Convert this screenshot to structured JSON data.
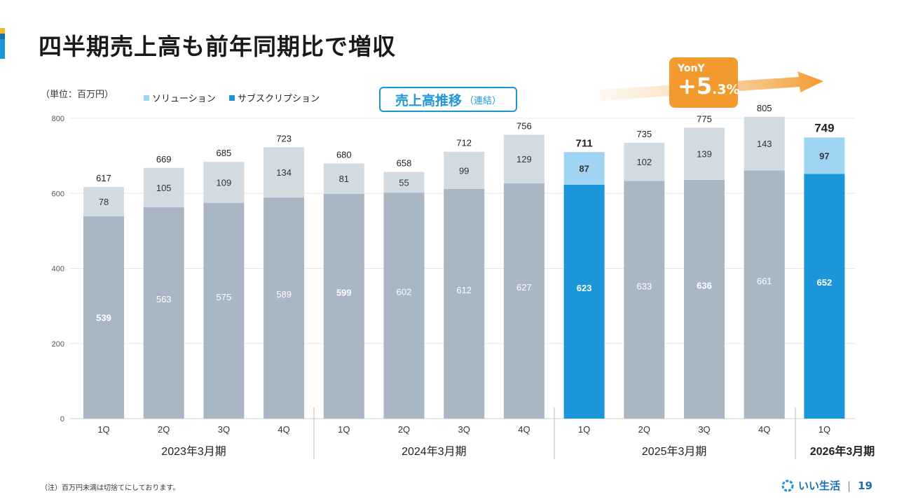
{
  "header": {
    "title": "四半期売上高も前年同期比で増収",
    "unit_label": "（単位：百万円）",
    "subtitle_main": "売上高推移",
    "subtitle_sub": "（連結）"
  },
  "yoy": {
    "label": "YonY",
    "value_big": "+5",
    "value_small": ".3%"
  },
  "footer": {
    "note": "（注）百万円未満は切捨てにしております。",
    "brand": "いい生活",
    "page": "19"
  },
  "colors": {
    "accent_top": "#f3b630",
    "accent_mid": "#1a6fae",
    "accent_bottom": "#1a96d9",
    "solution": "#d3dbe2",
    "subscription": "#a9b6c3",
    "solution_hl": "#9fd5f2",
    "subscription_hl": "#1a96d9",
    "orange": "#f39a2e"
  },
  "chart_data": {
    "type": "bar",
    "stacked": true,
    "ylim": [
      0,
      800
    ],
    "yticks": [
      "0",
      "200",
      "400",
      "600",
      "800"
    ],
    "legend": [
      "ソリューション",
      "サブスクリプション"
    ],
    "groups": [
      "2023年3月期",
      "2024年3月期",
      "2025年3月期",
      "2026年3月期"
    ],
    "bars": [
      {
        "q": "1Q",
        "group": 0,
        "sub": 539,
        "sol": 78,
        "total": 617,
        "hl": false,
        "bold": true
      },
      {
        "q": "2Q",
        "group": 0,
        "sub": 563,
        "sol": 105,
        "total": 669,
        "hl": false,
        "bold": false
      },
      {
        "q": "3Q",
        "group": 0,
        "sub": 575,
        "sol": 109,
        "total": 685,
        "hl": false,
        "bold": false
      },
      {
        "q": "4Q",
        "group": 0,
        "sub": 589,
        "sol": 134,
        "total": 723,
        "hl": false,
        "bold": false
      },
      {
        "q": "1Q",
        "group": 1,
        "sub": 599,
        "sol": 81,
        "total": 680,
        "hl": false,
        "bold": true
      },
      {
        "q": "2Q",
        "group": 1,
        "sub": 602,
        "sol": 55,
        "total": 658,
        "hl": false,
        "bold": false
      },
      {
        "q": "3Q",
        "group": 1,
        "sub": 612,
        "sol": 99,
        "total": 712,
        "hl": false,
        "bold": false
      },
      {
        "q": "4Q",
        "group": 1,
        "sub": 627,
        "sol": 129,
        "total": 756,
        "hl": false,
        "bold": false
      },
      {
        "q": "1Q",
        "group": 2,
        "sub": 623,
        "sol": 87,
        "total": 711,
        "hl": true,
        "bold": true
      },
      {
        "q": "2Q",
        "group": 2,
        "sub": 633,
        "sol": 102,
        "total": 735,
        "hl": false,
        "bold": false
      },
      {
        "q": "3Q",
        "group": 2,
        "sub": 636,
        "sol": 139,
        "total": 775,
        "hl": false,
        "bold": true
      },
      {
        "q": "4Q",
        "group": 2,
        "sub": 661,
        "sol": 143,
        "total": 805,
        "hl": false,
        "bold": false
      },
      {
        "q": "1Q",
        "group": 3,
        "sub": 652,
        "sol": 97,
        "total": 749,
        "hl": true,
        "bold": true
      }
    ]
  }
}
